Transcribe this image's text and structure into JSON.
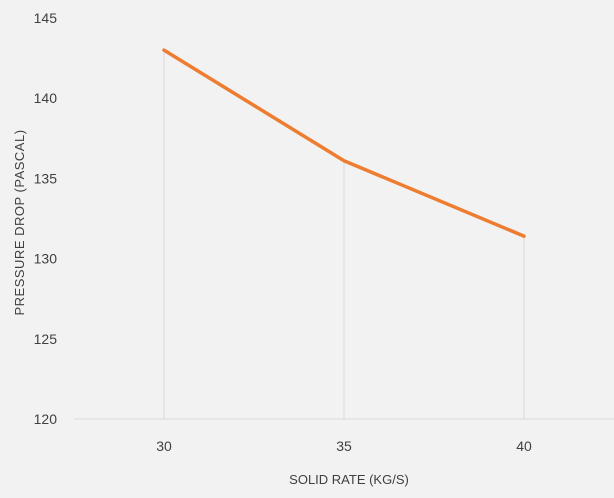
{
  "chart_data": {
    "type": "line",
    "title": "",
    "xlabel": "SOLID RATE (KG/S)",
    "ylabel": "PRESSURE DROP (PASCAL)",
    "categories": [
      "30",
      "35",
      "40"
    ],
    "series": [
      {
        "values": [
          143.0,
          136.1,
          131.4
        ],
        "color": "#ed7d31"
      }
    ],
    "ylim": [
      120,
      145
    ],
    "yticks": [
      "120",
      "125",
      "130",
      "135",
      "140",
      "145"
    ],
    "drop_lines": true,
    "grid": false,
    "legend": "none",
    "colors": {
      "background": "#f2f2f2",
      "axis": "#d9d9d9",
      "drop_line": "#d9d9d9",
      "text": "#404040"
    }
  }
}
